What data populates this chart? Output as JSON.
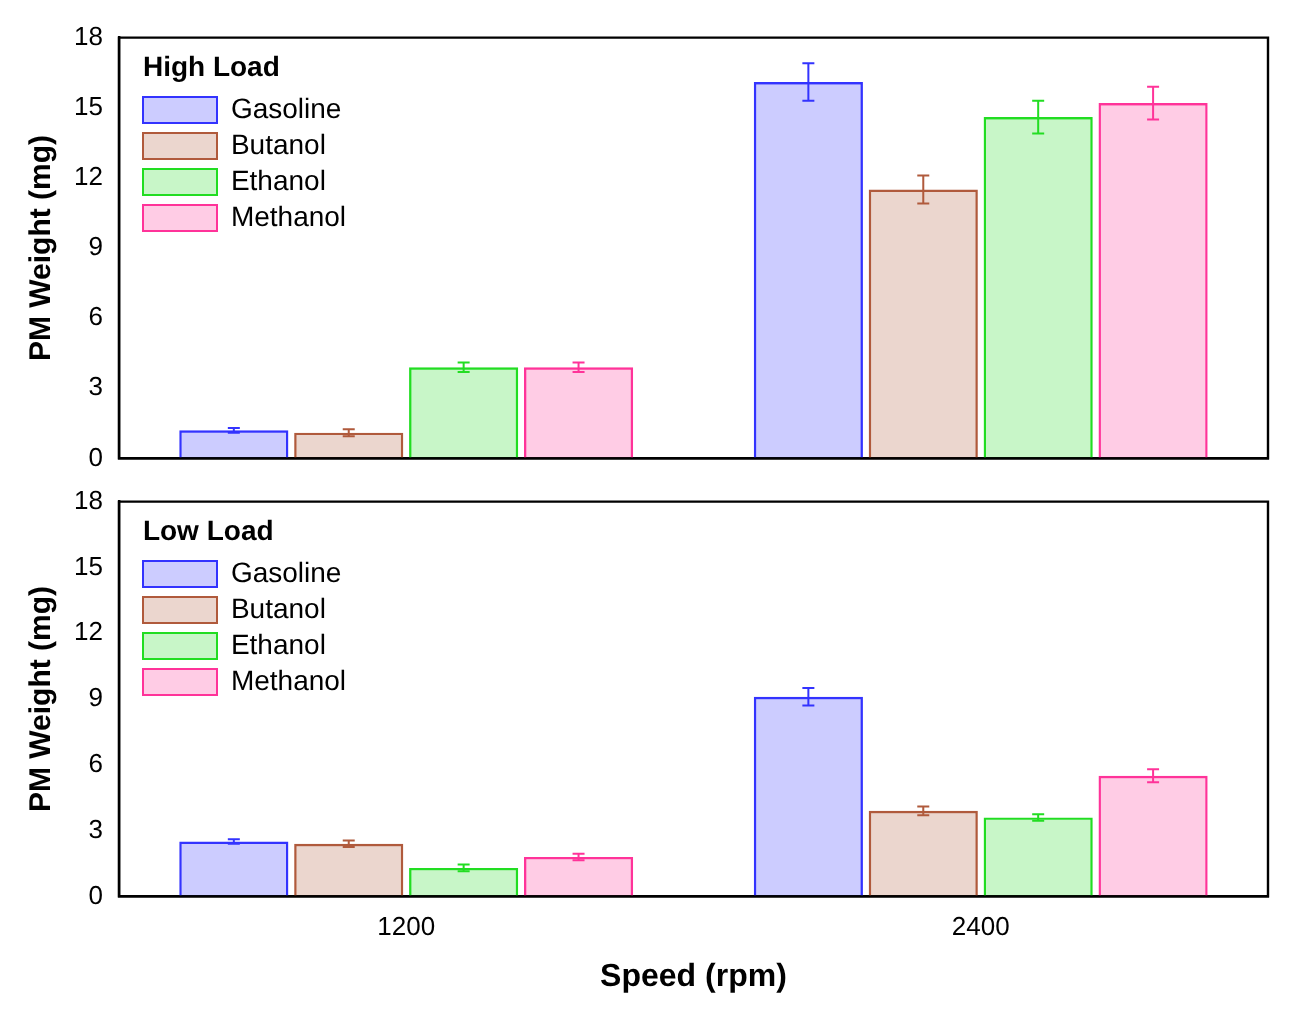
{
  "chart_data": [
    {
      "type": "bar",
      "legend_title": "High Load",
      "ylabel": "PM Weight (mg)",
      "categories": [
        "1200",
        "2400"
      ],
      "ylim": [
        0,
        18
      ],
      "yticks": [
        0,
        3,
        6,
        9,
        12,
        15,
        18
      ],
      "tick_labels": "y",
      "grid": false,
      "legend": "top left",
      "series": [
        {
          "name": "Gasoline",
          "color": "#3333ff",
          "values": [
            1.2,
            16.1
          ],
          "errors": [
            0.1,
            0.8
          ]
        },
        {
          "name": "Butanol",
          "color": "#b05a3c",
          "values": [
            1.1,
            11.5
          ],
          "errors": [
            0.15,
            0.6
          ]
        },
        {
          "name": "Ethanol",
          "color": "#22dd22",
          "values": [
            3.9,
            14.6
          ],
          "errors": [
            0.2,
            0.7
          ]
        },
        {
          "name": "Methanol",
          "color": "#ff3399",
          "values": [
            3.9,
            15.2
          ],
          "errors": [
            0.2,
            0.7
          ]
        }
      ]
    },
    {
      "type": "bar",
      "legend_title": "Low Load",
      "xlabel": "Speed (rpm)",
      "ylabel": "PM Weight (mg)",
      "categories": [
        "1200",
        "2400"
      ],
      "ylim": [
        0,
        18
      ],
      "yticks": [
        0,
        3,
        6,
        9,
        12,
        15,
        18
      ],
      "grid": false,
      "legend": "top left",
      "series": [
        {
          "name": "Gasoline",
          "color": "#3333ff",
          "values": [
            2.5,
            9.1
          ],
          "errors": [
            0.1,
            0.4
          ]
        },
        {
          "name": "Butanol",
          "color": "#b05a3c",
          "values": [
            2.4,
            3.9
          ],
          "errors": [
            0.15,
            0.2
          ]
        },
        {
          "name": "Ethanol",
          "color": "#22dd22",
          "values": [
            1.3,
            3.6
          ],
          "errors": [
            0.15,
            0.15
          ]
        },
        {
          "name": "Methanol",
          "color": "#ff3399",
          "values": [
            1.8,
            5.5
          ],
          "errors": [
            0.15,
            0.3
          ]
        }
      ]
    }
  ]
}
